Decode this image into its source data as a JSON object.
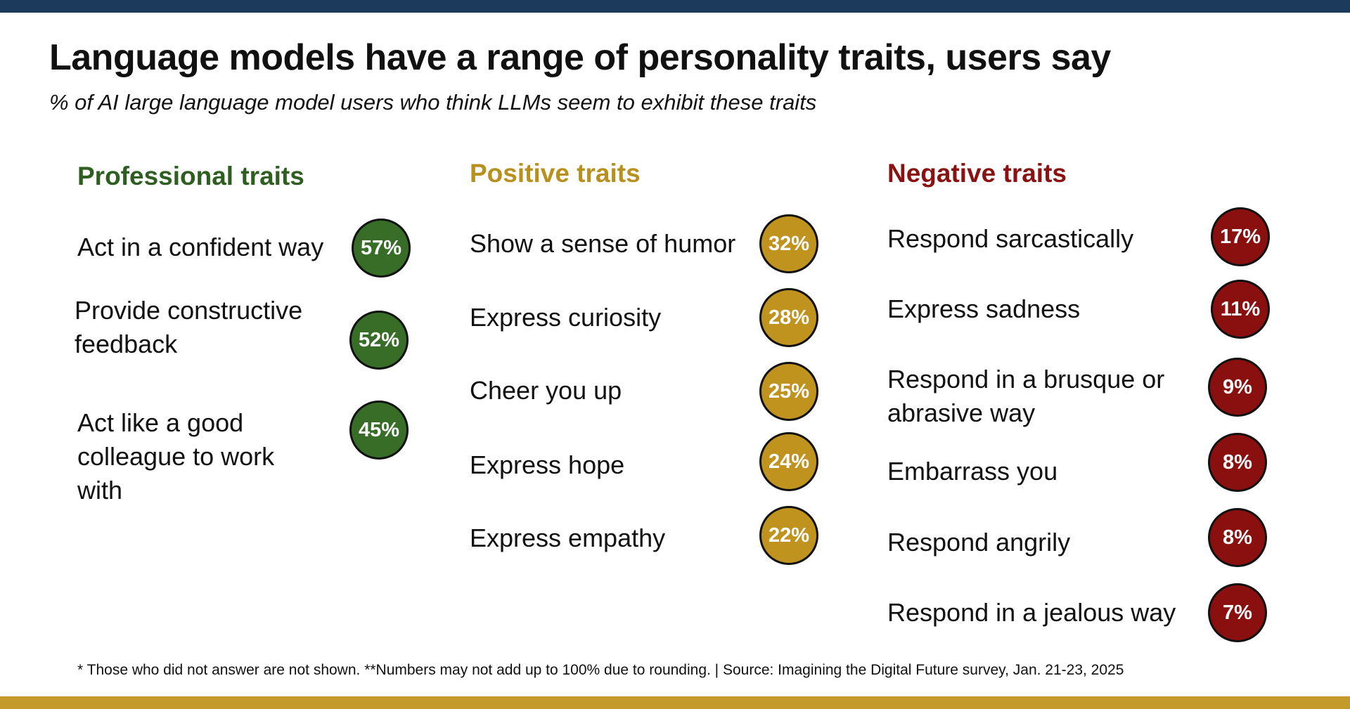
{
  "title": "Language models have a range of personality traits, users say",
  "subtitle": "% of AI large language model users who think LLMs seem to exhibit these traits",
  "footnote": "* Those who did not answer are not shown. **Numbers may not add up to 100% due to rounding. | Source: Imagining the Digital Future survey, Jan. 21-23, 2025",
  "colors": {
    "professional": "#386d28",
    "positive": "#c0931f",
    "negative": "#8a0f0f",
    "professional_heading": "#2f5e21",
    "positive_heading": "#b8901e",
    "negative_heading": "#8a1212",
    "top_bar": "#1b3a5c",
    "bottom_bar": "#c49a2a"
  },
  "chart_data": {
    "type": "table",
    "title": "Language models have a range of personality traits, users say",
    "subtitle": "% of AI large language model users who think LLMs seem to exhibit these traits",
    "unit": "%",
    "groups": [
      {
        "key": "professional",
        "name": "Professional traits",
        "items": [
          {
            "label": "Act in a confident way",
            "value": 57,
            "display": "57%"
          },
          {
            "label": "Provide constructive feedback",
            "value": 52,
            "display": "52%"
          },
          {
            "label": "Act like a good colleague to work with",
            "value": 45,
            "display": "45%"
          }
        ]
      },
      {
        "key": "positive",
        "name": "Positive traits",
        "items": [
          {
            "label": "Show a sense of humor",
            "value": 32,
            "display": "32%"
          },
          {
            "label": "Express curiosity",
            "value": 28,
            "display": "28%"
          },
          {
            "label": "Cheer you up",
            "value": 25,
            "display": "25%"
          },
          {
            "label": "Express hope",
            "value": 24,
            "display": "24%"
          },
          {
            "label": "Express empathy",
            "value": 22,
            "display": "22%"
          }
        ]
      },
      {
        "key": "negative",
        "name": "Negative traits",
        "items": [
          {
            "label": "Respond sarcastically",
            "value": 17,
            "display": "17%"
          },
          {
            "label": "Express sadness",
            "value": 11,
            "display": "11%"
          },
          {
            "label": "Respond in a brusque or abrasive way",
            "value": 9,
            "display": "9%"
          },
          {
            "label": "Embarrass you",
            "value": 8,
            "display": "8%"
          },
          {
            "label": "Respond angrily",
            "value": 8,
            "display": "8%"
          },
          {
            "label": "Respond in a jealous way",
            "value": 7,
            "display": "7%"
          }
        ]
      }
    ]
  }
}
